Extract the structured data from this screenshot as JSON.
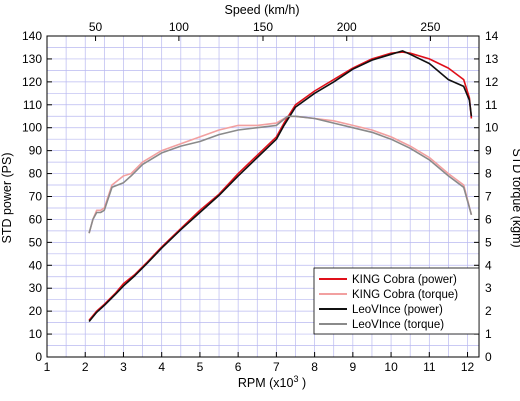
{
  "chart_data": {
    "type": "line",
    "xlabel": "RPM (x10",
    "xlabel_sup": "3",
    "xlabel_tail": " )",
    "x2label": "Speed (km/h)",
    "ylabel": "STD power (PS)",
    "y2label": "STD torque (kgm)",
    "xlim": [
      1,
      12.3
    ],
    "ylim": [
      0,
      140
    ],
    "y2lim": [
      0,
      14
    ],
    "x2_ticks": [
      {
        "label": "50",
        "rpm": 2.27
      },
      {
        "label": "100",
        "rpm": 4.45
      },
      {
        "label": "150",
        "rpm": 6.65
      },
      {
        "label": "200",
        "rpm": 8.84
      },
      {
        "label": "250",
        "rpm": 11.03
      }
    ],
    "grid": true,
    "legend_position": "bottom-right",
    "series": [
      {
        "name": "KING Cobra (power)",
        "axis": "left",
        "color": "#e0101a",
        "x": [
          2.1,
          2.3,
          2.5,
          2.8,
          3.0,
          3.3,
          3.6,
          4.0,
          4.5,
          5.0,
          5.5,
          6.0,
          6.5,
          7.0,
          7.2,
          7.5,
          8.0,
          8.5,
          9.0,
          9.5,
          10.0,
          10.3,
          10.5,
          11.0,
          11.5,
          11.9,
          12.05,
          12.1
        ],
        "y": [
          16,
          20,
          23,
          28,
          32,
          36,
          41,
          48,
          56,
          64,
          71,
          80,
          88,
          96,
          102,
          110,
          116,
          121,
          126,
          130,
          132.5,
          133,
          132.5,
          130,
          126,
          121,
          113,
          104
        ]
      },
      {
        "name": "KING Cobra (torque)",
        "axis": "right",
        "color": "#f2a0a0",
        "x": [
          2.1,
          2.2,
          2.3,
          2.4,
          2.5,
          2.7,
          3.0,
          3.2,
          3.5,
          4.0,
          4.5,
          5.0,
          5.5,
          6.0,
          6.5,
          7.0,
          7.3,
          7.5,
          8.0,
          8.5,
          9.0,
          9.5,
          10.0,
          10.5,
          11.0,
          11.5,
          11.9,
          12.1
        ],
        "y": [
          5.4,
          6.0,
          6.4,
          6.4,
          6.5,
          7.5,
          7.9,
          8.0,
          8.5,
          9.0,
          9.3,
          9.6,
          9.9,
          10.1,
          10.1,
          10.2,
          10.5,
          10.5,
          10.4,
          10.3,
          10.1,
          9.9,
          9.6,
          9.2,
          8.7,
          8.0,
          7.5,
          6.2
        ]
      },
      {
        "name": "LeoVInce (power)",
        "axis": "left",
        "color": "#111111",
        "x": [
          2.1,
          2.3,
          2.5,
          2.8,
          3.0,
          3.3,
          3.6,
          4.0,
          4.5,
          5.0,
          5.5,
          6.0,
          6.5,
          7.0,
          7.2,
          7.5,
          8.0,
          8.5,
          9.0,
          9.5,
          10.0,
          10.3,
          10.5,
          11.0,
          11.5,
          11.9,
          12.05,
          12.1
        ],
        "y": [
          15.5,
          19.5,
          22.5,
          27.5,
          31,
          35.5,
          40.5,
          47.5,
          55.5,
          63,
          70.5,
          79,
          87,
          95,
          101,
          109,
          115,
          120,
          125.5,
          129.5,
          132,
          133.5,
          132,
          128,
          121,
          118,
          112,
          105
        ]
      },
      {
        "name": "LeoVInce (torque)",
        "axis": "right",
        "color": "#8a8a8a",
        "x": [
          2.1,
          2.2,
          2.3,
          2.4,
          2.5,
          2.7,
          3.0,
          3.2,
          3.5,
          4.0,
          4.5,
          5.0,
          5.5,
          6.0,
          6.5,
          7.0,
          7.3,
          7.5,
          8.0,
          8.5,
          9.0,
          9.5,
          10.0,
          10.5,
          11.0,
          11.5,
          11.9,
          12.1
        ],
        "y": [
          5.4,
          6.0,
          6.3,
          6.3,
          6.4,
          7.4,
          7.6,
          7.9,
          8.4,
          8.9,
          9.2,
          9.4,
          9.7,
          9.9,
          10.0,
          10.1,
          10.5,
          10.5,
          10.4,
          10.2,
          10.0,
          9.8,
          9.5,
          9.1,
          8.6,
          7.9,
          7.4,
          6.2
        ]
      }
    ]
  }
}
